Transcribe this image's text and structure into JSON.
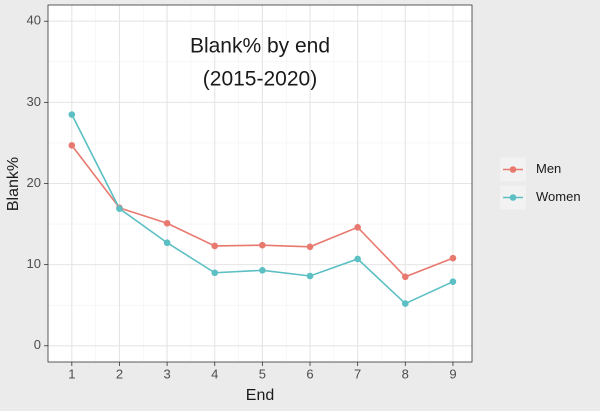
{
  "chart_data": {
    "type": "line",
    "title": [
      "Blank% by end",
      "(2015-2020)"
    ],
    "x_label": "End",
    "y_label": "Blank%",
    "x": [
      1,
      2,
      3,
      4,
      5,
      6,
      7,
      8,
      9
    ],
    "series": [
      {
        "name": "Men",
        "color": "#e8796f",
        "values": [
          24.7,
          17.0,
          15.1,
          12.3,
          12.4,
          12.2,
          14.6,
          8.5,
          10.8
        ]
      },
      {
        "name": "Women",
        "color": "#5bbfc4",
        "values": [
          28.5,
          16.9,
          12.7,
          9.0,
          9.3,
          8.6,
          10.7,
          5.2,
          7.9
        ]
      }
    ],
    "xlim": [
      0.5,
      9.4
    ],
    "xticks": [
      1,
      2,
      3,
      4,
      5,
      6,
      7,
      8,
      9
    ],
    "ylim": [
      -2,
      42
    ],
    "yticks": [
      0,
      10,
      20,
      30,
      40
    ],
    "grid": true,
    "legend": "right"
  }
}
